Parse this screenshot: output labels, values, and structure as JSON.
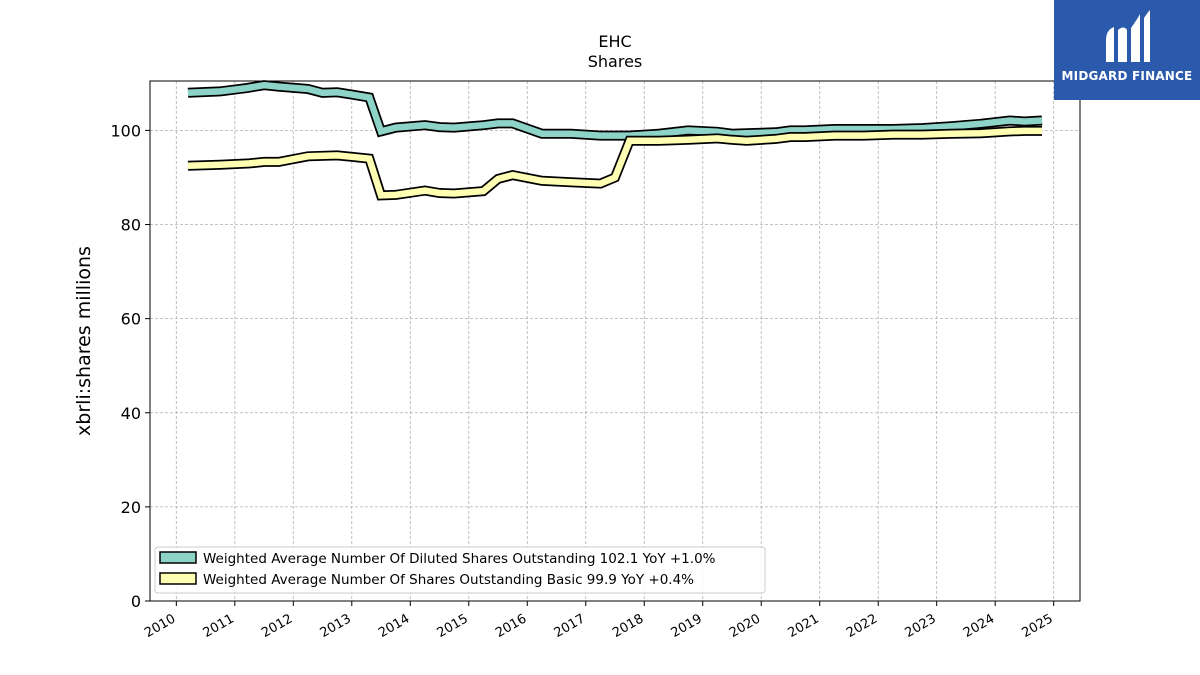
{
  "brand": {
    "name": "MIDGARD FINANCE",
    "color": "#2b5aad"
  },
  "chart_data": {
    "type": "line",
    "title": "EHC",
    "subtitle": "Shares",
    "ylabel": "xbrli:shares millions",
    "xlabel": "",
    "xlim": [
      2009.55,
      2025.45
    ],
    "ylim": [
      0,
      110.5
    ],
    "xticks": [
      2010,
      2011,
      2012,
      2013,
      2014,
      2015,
      2016,
      2017,
      2018,
      2019,
      2020,
      2021,
      2022,
      2023,
      2024,
      2025
    ],
    "xtick_labels": [
      "2010",
      "2011",
      "2012",
      "2013",
      "2014",
      "2015",
      "2016",
      "2017",
      "2018",
      "2019",
      "2020",
      "2021",
      "2022",
      "2023",
      "2024",
      "2025"
    ],
    "yticks": [
      0,
      20,
      40,
      60,
      80,
      100
    ],
    "ytick_labels": [
      "0",
      "20",
      "40",
      "60",
      "80",
      "100"
    ],
    "grid": true,
    "legend_position": "lower-left",
    "series": [
      {
        "name": "Weighted Average Number Of Diluted Shares Outstanding  102.1 YoY +1.0%",
        "color": "#8dd3c7",
        "points": [
          [
            2010.2,
            108.0
          ],
          [
            2010.75,
            108.3
          ],
          [
            2011.2,
            109.0
          ],
          [
            2011.5,
            109.6
          ],
          [
            2011.75,
            109.3
          ],
          [
            2012.25,
            108.8
          ],
          [
            2012.5,
            108.0
          ],
          [
            2012.75,
            108.1
          ],
          [
            2013.0,
            107.6
          ],
          [
            2013.3,
            107.0
          ],
          [
            2013.5,
            99.8
          ],
          [
            2013.75,
            100.6
          ],
          [
            2014.25,
            101.1
          ],
          [
            2014.5,
            100.7
          ],
          [
            2014.75,
            100.6
          ],
          [
            2015.25,
            101.1
          ],
          [
            2015.5,
            101.5
          ],
          [
            2015.75,
            101.5
          ],
          [
            2016.25,
            99.3
          ],
          [
            2016.75,
            99.3
          ],
          [
            2017.25,
            98.9
          ],
          [
            2017.5,
            98.9
          ],
          [
            2017.75,
            98.9
          ],
          [
            2018.25,
            99.3
          ],
          [
            2018.75,
            100.0
          ],
          [
            2019.25,
            99.7
          ],
          [
            2019.5,
            99.3
          ],
          [
            2019.75,
            99.4
          ],
          [
            2020.25,
            99.6
          ],
          [
            2020.5,
            100.0
          ],
          [
            2020.75,
            100.0
          ],
          [
            2021.25,
            100.3
          ],
          [
            2021.75,
            100.3
          ],
          [
            2022.25,
            100.3
          ],
          [
            2022.75,
            100.5
          ],
          [
            2023.25,
            100.9
          ],
          [
            2023.75,
            101.4
          ],
          [
            2024.25,
            102.1
          ],
          [
            2024.5,
            101.9
          ],
          [
            2024.8,
            102.1
          ]
        ]
      },
      {
        "name": "Weighted Average Number Of Shares Outstanding Basic  99.9 YoY +0.4%",
        "color": "#ffffb3",
        "points": [
          [
            2010.2,
            92.5
          ],
          [
            2010.75,
            92.7
          ],
          [
            2011.25,
            93.0
          ],
          [
            2011.5,
            93.3
          ],
          [
            2011.75,
            93.3
          ],
          [
            2012.25,
            94.5
          ],
          [
            2012.75,
            94.7
          ],
          [
            2013.0,
            94.4
          ],
          [
            2013.3,
            94.0
          ],
          [
            2013.5,
            86.2
          ],
          [
            2013.75,
            86.3
          ],
          [
            2014.25,
            87.2
          ],
          [
            2014.5,
            86.7
          ],
          [
            2014.75,
            86.6
          ],
          [
            2015.25,
            87.1
          ],
          [
            2015.5,
            89.7
          ],
          [
            2015.75,
            90.5
          ],
          [
            2016.25,
            89.3
          ],
          [
            2016.75,
            89.0
          ],
          [
            2017.25,
            88.7
          ],
          [
            2017.5,
            90.0
          ],
          [
            2017.75,
            97.8
          ],
          [
            2018.25,
            97.8
          ],
          [
            2018.75,
            98.0
          ],
          [
            2019.25,
            98.3
          ],
          [
            2019.5,
            98.0
          ],
          [
            2019.75,
            97.8
          ],
          [
            2020.25,
            98.2
          ],
          [
            2020.5,
            98.6
          ],
          [
            2020.75,
            98.6
          ],
          [
            2021.25,
            98.9
          ],
          [
            2021.75,
            98.9
          ],
          [
            2022.25,
            99.1
          ],
          [
            2022.75,
            99.1
          ],
          [
            2023.25,
            99.3
          ],
          [
            2023.75,
            99.4
          ],
          [
            2024.25,
            99.8
          ],
          [
            2024.5,
            99.9
          ],
          [
            2024.8,
            99.9
          ]
        ]
      }
    ]
  }
}
